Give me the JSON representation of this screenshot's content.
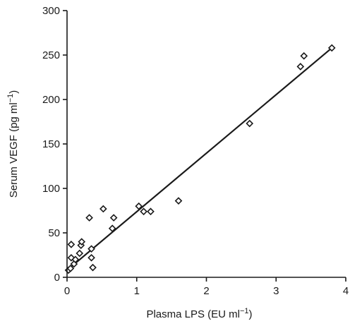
{
  "chart_data": {
    "type": "scatter",
    "title": "",
    "xlabel_main": "Plasma LPS (EU ml",
    "xlabel_sup": "−1",
    "xlabel_close": ")",
    "ylabel_main": "Serum VEGF (pg ml",
    "ylabel_sup": "−1",
    "ylabel_close": ")",
    "xlim": [
      0,
      4
    ],
    "ylim": [
      0,
      300
    ],
    "x_ticks": [
      0,
      1,
      2,
      3,
      4
    ],
    "y_ticks": [
      0,
      50,
      100,
      150,
      200,
      250,
      300
    ],
    "grid": false,
    "fit_line": {
      "x": [
        0,
        3.8
      ],
      "y": [
        8,
        258
      ]
    },
    "points": [
      {
        "x": 0.02,
        "y": 8
      },
      {
        "x": 0.05,
        "y": 10
      },
      {
        "x": 0.06,
        "y": 22
      },
      {
        "x": 0.06,
        "y": 37
      },
      {
        "x": 0.1,
        "y": 15
      },
      {
        "x": 0.12,
        "y": 20
      },
      {
        "x": 0.18,
        "y": 27
      },
      {
        "x": 0.2,
        "y": 36
      },
      {
        "x": 0.21,
        "y": 40
      },
      {
        "x": 0.32,
        "y": 67
      },
      {
        "x": 0.35,
        "y": 22
      },
      {
        "x": 0.35,
        "y": 32
      },
      {
        "x": 0.37,
        "y": 11
      },
      {
        "x": 0.52,
        "y": 77
      },
      {
        "x": 0.65,
        "y": 55
      },
      {
        "x": 0.67,
        "y": 67
      },
      {
        "x": 1.03,
        "y": 80
      },
      {
        "x": 1.1,
        "y": 74
      },
      {
        "x": 1.2,
        "y": 74
      },
      {
        "x": 1.6,
        "y": 86
      },
      {
        "x": 2.62,
        "y": 173
      },
      {
        "x": 3.35,
        "y": 237
      },
      {
        "x": 3.4,
        "y": 249
      },
      {
        "x": 3.8,
        "y": 258
      }
    ]
  }
}
